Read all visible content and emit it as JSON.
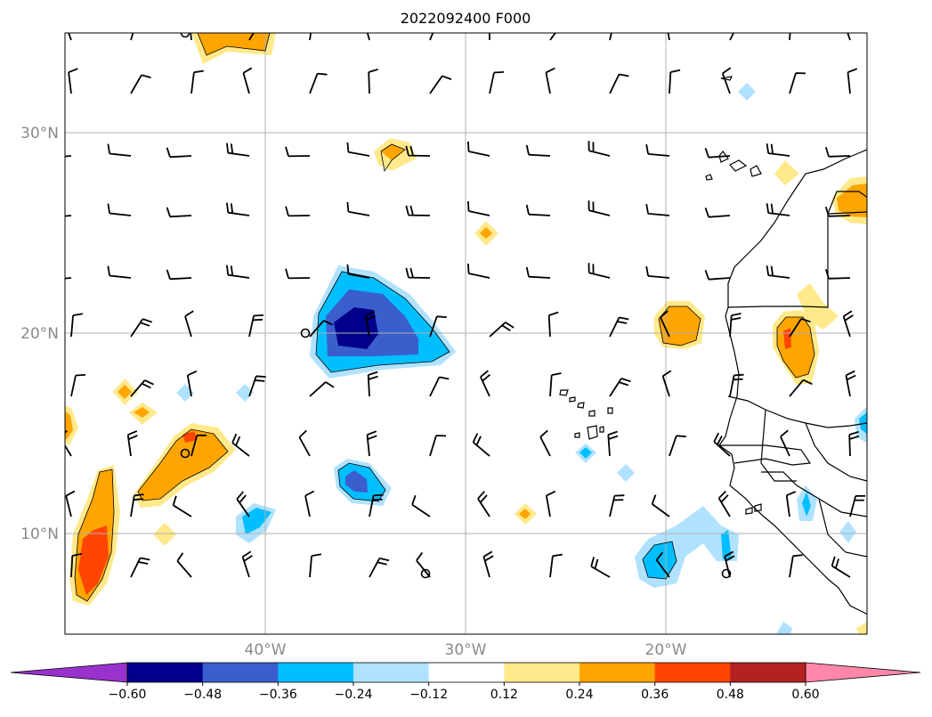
{
  "title": "2022092400 F000",
  "axes": {
    "lon_range": [
      -50,
      -10
    ],
    "lat_range": [
      5,
      35
    ],
    "lat_ticks": [
      {
        "value": 30,
        "label": "30°N"
      },
      {
        "value": 20,
        "label": "20°N"
      },
      {
        "value": 10,
        "label": "10°N"
      }
    ],
    "lon_ticks": [
      {
        "value": -40,
        "label": "40°W"
      },
      {
        "value": -30,
        "label": "30°W"
      },
      {
        "value": -20,
        "label": "20°W"
      }
    ],
    "grid": true
  },
  "colorbar": {
    "levels": [
      -0.6,
      -0.48,
      -0.36,
      -0.24,
      -0.12,
      0.12,
      0.24,
      0.36,
      0.48,
      0.6
    ],
    "labels": [
      "−0.60",
      "−0.48",
      "−0.36",
      "−0.24",
      "−0.12",
      "0.12",
      "0.24",
      "0.36",
      "0.48",
      "0.60"
    ],
    "under_color": "#9932cc",
    "over_color": "#ff88aa",
    "colors": [
      "#00008b",
      "#3a5fcd",
      "#00bfff",
      "#b0e2ff",
      "#ffffff",
      "#ffe98a",
      "#ffa500",
      "#ff4500",
      "#b22222"
    ]
  },
  "legend_colors": {
    "coast": "#000000",
    "grid": "#b0b0b0"
  }
}
